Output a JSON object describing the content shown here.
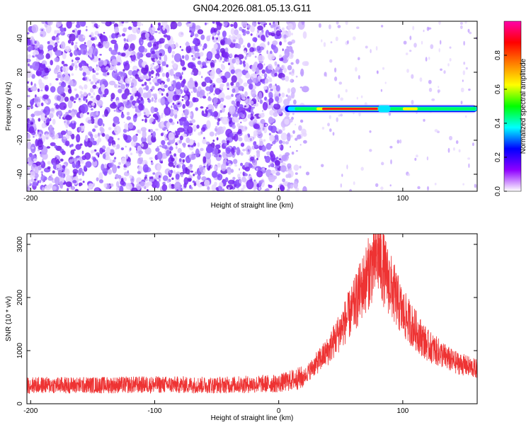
{
  "chart_data": [
    {
      "type": "heatmap",
      "title": "GN04.2026.081.05.13.G11",
      "xlabel": "Height of straight line (km)",
      "ylabel": "Frequency (Hz)",
      "xlim": [
        -203,
        160
      ],
      "ylim": [
        -50,
        50
      ],
      "xticks": [
        -200,
        -100,
        0,
        100
      ],
      "yticks": [
        -40,
        -20,
        0,
        20,
        40
      ],
      "colorbar": {
        "label": "Normalized spectral amplitude",
        "range": [
          0,
          1
        ],
        "ticks": [
          "0.0",
          "0.2",
          "0.4",
          "0.6",
          "0.8"
        ],
        "colors": [
          "#ffffff",
          "#8f00ff",
          "#0000ff",
          "#00ffff",
          "#00ff00",
          "#ffff00",
          "#ff8000",
          "#ff0000",
          "#ff00aa"
        ]
      },
      "features": {
        "noise_region_x": [
          -203,
          12
        ],
        "line_start_x": 5,
        "line_frequency_hz": -1.5,
        "peak_x_range": [
          35,
          80
        ]
      }
    },
    {
      "type": "line",
      "xlabel": "Height of straight line (km)",
      "ylabel": "SNR (10 * v/v)",
      "xlim": [
        -203,
        160
      ],
      "ylim": [
        0,
        3200
      ],
      "xticks": [
        -200,
        -100,
        0,
        100
      ],
      "yticks": [
        0,
        1000,
        2000,
        3000
      ],
      "series": [
        {
          "color": "#ee3333",
          "x": [
            -203,
            -150,
            -100,
            -50,
            0,
            20,
            40,
            60,
            75,
            80,
            85,
            100,
            120,
            140,
            160
          ],
          "y": [
            350,
            350,
            360,
            350,
            380,
            500,
            1000,
            1800,
            2600,
            2800,
            2500,
            1700,
            1100,
            800,
            650
          ]
        }
      ]
    }
  ]
}
